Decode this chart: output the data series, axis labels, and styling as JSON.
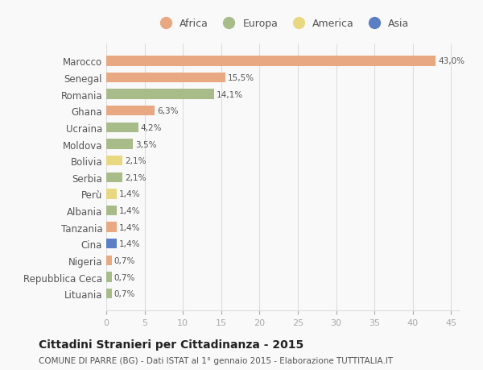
{
  "countries": [
    "Marocco",
    "Senegal",
    "Romania",
    "Ghana",
    "Ucraina",
    "Moldova",
    "Bolivia",
    "Serbia",
    "Perù",
    "Albania",
    "Tanzania",
    "Cina",
    "Nigeria",
    "Repubblica Ceca",
    "Lituania"
  ],
  "values": [
    43.0,
    15.5,
    14.1,
    6.3,
    4.2,
    3.5,
    2.1,
    2.1,
    1.4,
    1.4,
    1.4,
    1.4,
    0.7,
    0.7,
    0.7
  ],
  "labels": [
    "43,0%",
    "15,5%",
    "14,1%",
    "6,3%",
    "4,2%",
    "3,5%",
    "2,1%",
    "2,1%",
    "1,4%",
    "1,4%",
    "1,4%",
    "1,4%",
    "0,7%",
    "0,7%",
    "0,7%"
  ],
  "colors": [
    "#e8a882",
    "#e8a882",
    "#a8bc8a",
    "#e8a882",
    "#a8bc8a",
    "#a8bc8a",
    "#e8d882",
    "#a8bc8a",
    "#e8d882",
    "#a8bc8a",
    "#e8a882",
    "#5b7ec4",
    "#e8a882",
    "#a8bc8a",
    "#a8bc8a"
  ],
  "legend_labels": [
    "Africa",
    "Europa",
    "America",
    "Asia"
  ],
  "legend_colors": [
    "#e8a882",
    "#a8bc8a",
    "#e8d882",
    "#5b7ec4"
  ],
  "title": "Cittadini Stranieri per Cittadinanza - 2015",
  "subtitle": "COMUNE DI PARRE (BG) - Dati ISTAT al 1° gennaio 2015 - Elaborazione TUTTITALIA.IT",
  "xlim": [
    0,
    46
  ],
  "xticks": [
    0,
    5,
    10,
    15,
    20,
    25,
    30,
    35,
    40,
    45
  ],
  "background_color": "#f9f9f9",
  "grid_color": "#dddddd",
  "label_color": "#555555",
  "tick_color": "#aaaaaa"
}
